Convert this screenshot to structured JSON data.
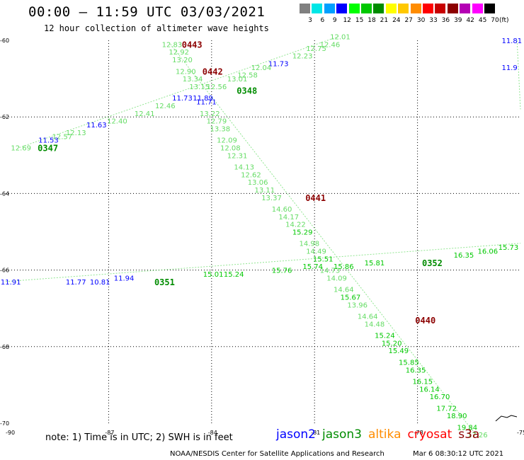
{
  "header": {
    "title": "00:00 – 11:59 UTC 03/03/2021",
    "subtitle": "12 hour collection of altimeter wave heights"
  },
  "legend": {
    "labels": [
      "3",
      "6",
      "9",
      "12",
      "15",
      "18",
      "21",
      "24",
      "27",
      "30",
      "33",
      "36",
      "39",
      "42",
      "45",
      "70"
    ],
    "colors": [
      "#808080",
      "#00e6e6",
      "#00a0ff",
      "#0000ff",
      "#00ff00",
      "#00c800",
      "#008c00",
      "#ffff00",
      "#ffc800",
      "#ff8c00",
      "#ff0000",
      "#c80000",
      "#8c0000",
      "#b400b4",
      "#ff00ff",
      "#000000"
    ],
    "unit": "(ft)"
  },
  "chart_data": {
    "type": "scatter",
    "xlim": [
      -90,
      -75
    ],
    "ylim": [
      -70,
      -60
    ],
    "xticks": [
      "-90",
      "-87",
      "-84",
      "-81",
      "-78",
      "-75"
    ],
    "yticks": [
      "-60",
      "-62",
      "-64",
      "-66",
      "-68",
      "-70"
    ],
    "grid": true,
    "pass_labels": [
      {
        "text": "0443",
        "x": -84.6,
        "y": -60.1,
        "color": "#8c0000"
      },
      {
        "text": "0442",
        "x": -84.0,
        "y": -60.8,
        "color": "#8c0000"
      },
      {
        "text": "0348",
        "x": -83.0,
        "y": -61.3,
        "color": "#008c00"
      },
      {
        "text": "0347",
        "x": -88.8,
        "y": -62.8,
        "color": "#008c00"
      },
      {
        "text": "0441",
        "x": -81.0,
        "y": -64.1,
        "color": "#8c0000"
      },
      {
        "text": "0440",
        "x": -77.8,
        "y": -67.3,
        "color": "#8c0000"
      },
      {
        "text": "0351",
        "x": -85.4,
        "y": -66.3,
        "color": "#008c00"
      },
      {
        "text": "0352",
        "x": -77.6,
        "y": -65.8,
        "color": "#008c00"
      }
    ],
    "points": [
      {
        "text": "12.83",
        "x": -85.2,
        "y": -60.1,
        "color": "#64dc64"
      },
      {
        "text": "12.92",
        "x": -85.0,
        "y": -60.3,
        "color": "#64dc64"
      },
      {
        "text": "13.20",
        "x": -84.9,
        "y": -60.5,
        "color": "#64dc64"
      },
      {
        "text": "12.90",
        "x": -84.8,
        "y": -60.8,
        "color": "#64dc64"
      },
      {
        "text": "13.34",
        "x": -84.6,
        "y": -61.0,
        "color": "#64dc64"
      },
      {
        "text": "13.15",
        "x": -84.4,
        "y": -61.2,
        "color": "#64dc64"
      },
      {
        "text": "11.89",
        "x": -84.3,
        "y": -61.5,
        "color": "#0000ff"
      },
      {
        "text": "11.71",
        "x": -84.2,
        "y": -61.6,
        "color": "#0000ff"
      },
      {
        "text": "13.22",
        "x": -84.1,
        "y": -61.9,
        "color": "#64dc64"
      },
      {
        "text": "12.79",
        "x": -83.9,
        "y": -62.1,
        "color": "#64dc64"
      },
      {
        "text": "13.38",
        "x": -83.8,
        "y": -62.3,
        "color": "#64dc64"
      },
      {
        "text": "12.09",
        "x": -83.6,
        "y": -62.6,
        "color": "#64dc64"
      },
      {
        "text": "12.08",
        "x": -83.5,
        "y": -62.8,
        "color": "#64dc64"
      },
      {
        "text": "12.31",
        "x": -83.3,
        "y": -63.0,
        "color": "#64dc64"
      },
      {
        "text": "14.13",
        "x": -83.1,
        "y": -63.3,
        "color": "#64dc64"
      },
      {
        "text": "12.62",
        "x": -82.9,
        "y": -63.5,
        "color": "#64dc64"
      },
      {
        "text": "13.06",
        "x": -82.7,
        "y": -63.7,
        "color": "#64dc64"
      },
      {
        "text": "13.11",
        "x": -82.5,
        "y": -63.9,
        "color": "#64dc64"
      },
      {
        "text": "13.37",
        "x": -82.3,
        "y": -64.1,
        "color": "#64dc64"
      },
      {
        "text": "14.60",
        "x": -82.0,
        "y": -64.4,
        "color": "#64dc64"
      },
      {
        "text": "14.17",
        "x": -81.8,
        "y": -64.6,
        "color": "#64dc64"
      },
      {
        "text": "14.22",
        "x": -81.6,
        "y": -64.8,
        "color": "#64dc64"
      },
      {
        "text": "15.29",
        "x": -81.4,
        "y": -65.0,
        "color": "#00c800"
      },
      {
        "text": "14.98",
        "x": -81.2,
        "y": -65.3,
        "color": "#64dc64"
      },
      {
        "text": "14.49",
        "x": -81.0,
        "y": -65.5,
        "color": "#64dc64"
      },
      {
        "text": "15.51",
        "x": -80.8,
        "y": -65.7,
        "color": "#00c800"
      },
      {
        "text": "14.73",
        "x": -80.6,
        "y": -66.0,
        "color": "#64dc64"
      },
      {
        "text": "14.09",
        "x": -80.4,
        "y": -66.2,
        "color": "#64dc64"
      },
      {
        "text": "14.64",
        "x": -80.2,
        "y": -66.5,
        "color": "#64dc64"
      },
      {
        "text": "15.67",
        "x": -80.0,
        "y": -66.7,
        "color": "#00c800"
      },
      {
        "text": "13.96",
        "x": -79.8,
        "y": -66.9,
        "color": "#64dc64"
      },
      {
        "text": "14.64",
        "x": -79.5,
        "y": -67.2,
        "color": "#64dc64"
      },
      {
        "text": "14.48",
        "x": -79.3,
        "y": -67.4,
        "color": "#64dc64"
      },
      {
        "text": "15.24",
        "x": -79.0,
        "y": -67.7,
        "color": "#00c800"
      },
      {
        "text": "15.20",
        "x": -78.8,
        "y": -67.9,
        "color": "#00c800"
      },
      {
        "text": "15.49",
        "x": -78.6,
        "y": -68.1,
        "color": "#00c800"
      },
      {
        "text": "15.85",
        "x": -78.3,
        "y": -68.4,
        "color": "#00c800"
      },
      {
        "text": "16.35",
        "x": -78.1,
        "y": -68.6,
        "color": "#00c800"
      },
      {
        "text": "16.15",
        "x": -77.9,
        "y": -68.9,
        "color": "#00c800"
      },
      {
        "text": "16.14",
        "x": -77.7,
        "y": -69.1,
        "color": "#00c800"
      },
      {
        "text": "16.70",
        "x": -77.4,
        "y": -69.3,
        "color": "#00c800"
      },
      {
        "text": "17.72",
        "x": -77.2,
        "y": -69.6,
        "color": "#00c800"
      },
      {
        "text": "18.90",
        "x": -76.9,
        "y": -69.8,
        "color": "#00c800"
      },
      {
        "text": "19.84",
        "x": -76.6,
        "y": -70.1,
        "color": "#00c800"
      },
      {
        "text": "17.26",
        "x": -76.3,
        "y": -70.3,
        "color": "#64dc64"
      },
      {
        "text": "12.01",
        "x": -80.3,
        "y": -59.9,
        "color": "#64dc64"
      },
      {
        "text": "12.46",
        "x": -80.6,
        "y": -60.1,
        "color": "#64dc64"
      },
      {
        "text": "12.75",
        "x": -81.0,
        "y": -60.2,
        "color": "#64dc64"
      },
      {
        "text": "12.23",
        "x": -81.4,
        "y": -60.4,
        "color": "#64dc64"
      },
      {
        "text": "11.73",
        "x": -82.1,
        "y": -60.6,
        "color": "#0000ff"
      },
      {
        "text": "12.04",
        "x": -82.6,
        "y": -60.7,
        "color": "#64dc64"
      },
      {
        "text": "12.58",
        "x": -83.0,
        "y": -60.9,
        "color": "#64dc64"
      },
      {
        "text": "13.01",
        "x": -83.3,
        "y": -61.0,
        "color": "#64dc64"
      },
      {
        "text": "12.56",
        "x": -83.9,
        "y": -61.2,
        "color": "#64dc64"
      },
      {
        "text": "11.73",
        "x": -84.9,
        "y": -61.5,
        "color": "#0000ff"
      },
      {
        "text": "12.46",
        "x": -85.4,
        "y": -61.7,
        "color": "#64dc64"
      },
      {
        "text": "12.41",
        "x": -86.0,
        "y": -61.9,
        "color": "#64dc64"
      },
      {
        "text": "12.40",
        "x": -86.8,
        "y": -62.1,
        "color": "#64dc64"
      },
      {
        "text": "11.63",
        "x": -87.4,
        "y": -62.2,
        "color": "#0000ff"
      },
      {
        "text": "12.13",
        "x": -88.0,
        "y": -62.4,
        "color": "#64dc64"
      },
      {
        "text": "12.57",
        "x": -88.4,
        "y": -62.5,
        "color": "#64dc64"
      },
      {
        "text": "11.53",
        "x": -88.8,
        "y": -62.6,
        "color": "#0000ff"
      },
      {
        "text": "12.69",
        "x": -89.6,
        "y": -62.8,
        "color": "#64dc64"
      },
      {
        "text": "11.81",
        "x": -75.3,
        "y": -60.0,
        "color": "#0000ff"
      },
      {
        "text": "11.9",
        "x": -75.3,
        "y": -60.7,
        "color": "#0000ff"
      },
      {
        "text": "11.91",
        "x": -89.9,
        "y": -66.3,
        "color": "#0000ff"
      },
      {
        "text": "11.77",
        "x": -88.0,
        "y": -66.3,
        "color": "#0000ff"
      },
      {
        "text": "10.81",
        "x": -87.3,
        "y": -66.3,
        "color": "#0000ff"
      },
      {
        "text": "11.94",
        "x": -86.6,
        "y": -66.2,
        "color": "#0000ff"
      },
      {
        "text": "15.01",
        "x": -84.0,
        "y": -66.1,
        "color": "#00c800"
      },
      {
        "text": "15.24",
        "x": -83.4,
        "y": -66.1,
        "color": "#00c800"
      },
      {
        "text": "15.76",
        "x": -82.0,
        "y": -66.0,
        "color": "#00c800"
      },
      {
        "text": "15.74",
        "x": -81.1,
        "y": -65.9,
        "color": "#00c800"
      },
      {
        "text": "15.86",
        "x": -80.2,
        "y": -65.9,
        "color": "#00c800"
      },
      {
        "text": "15.81",
        "x": -79.3,
        "y": -65.8,
        "color": "#00c800"
      },
      {
        "text": "16.35",
        "x": -76.7,
        "y": -65.6,
        "color": "#00c800"
      },
      {
        "text": "16.06",
        "x": -76.0,
        "y": -65.5,
        "color": "#00c800"
      },
      {
        "text": "15.73",
        "x": -75.4,
        "y": -65.4,
        "color": "#00c800"
      }
    ],
    "tracks": [
      {
        "color": "#64dc64",
        "points": [
          [
            -85.2,
            -60.1
          ],
          [
            -76.3,
            -70.3
          ]
        ]
      },
      {
        "color": "#64dc64",
        "points": [
          [
            -89.6,
            -62.8
          ],
          [
            -80.3,
            -59.9
          ]
        ]
      },
      {
        "color": "#64dc64",
        "points": [
          [
            -90.0,
            -66.3
          ],
          [
            -75.0,
            -65.3
          ]
        ]
      },
      {
        "color": "#64dc64",
        "points": [
          [
            -75.1,
            -60.0
          ],
          [
            -75.0,
            -61.8
          ]
        ]
      }
    ]
  },
  "footer": {
    "note": "note: 1) Time is in UTC; 2) SWH is in feet",
    "satellites": [
      {
        "name": "jason2",
        "color": "#0000ff"
      },
      {
        "name": "jason3",
        "color": "#008c00"
      },
      {
        "name": "altika",
        "color": "#ff8c00"
      },
      {
        "name": "cryosat",
        "color": "#ff0000"
      },
      {
        "name": "s3a",
        "color": "#8c0000"
      }
    ],
    "credit": "NOAA/NESDIS Center for Satellite Applications and Research",
    "timestamp": "Mar  6 08:30:12 UTC 2021"
  }
}
